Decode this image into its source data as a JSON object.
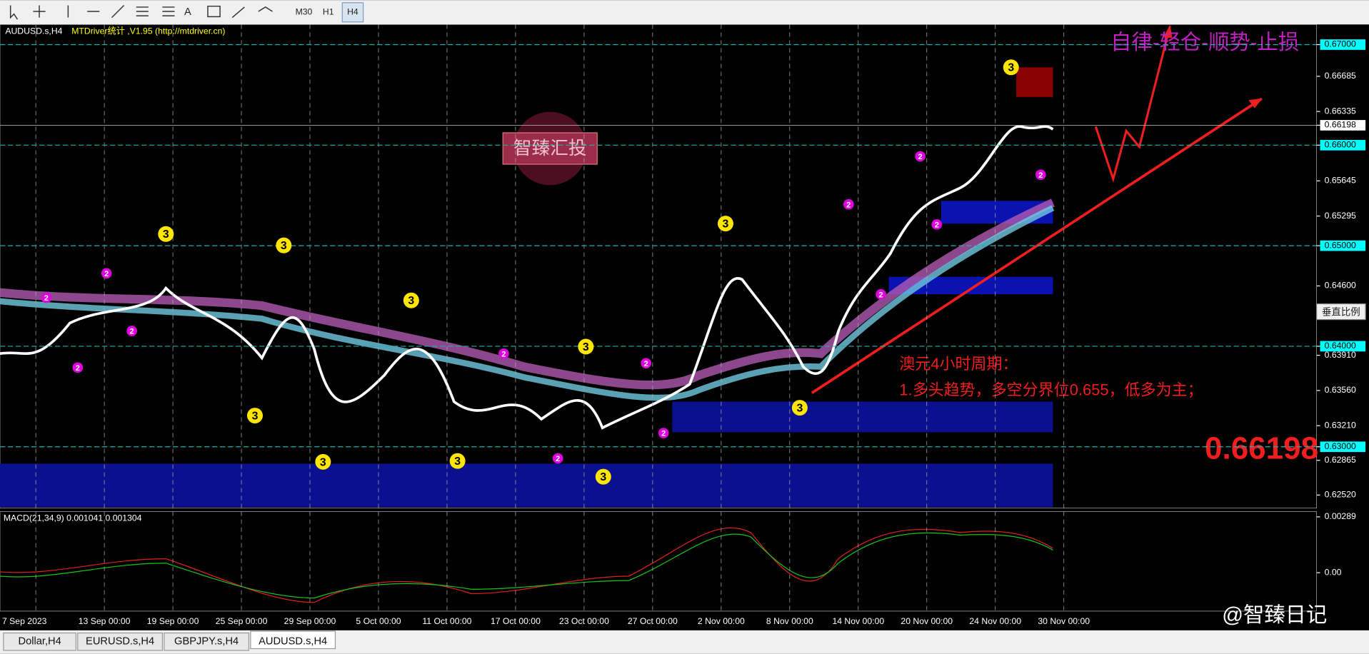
{
  "toolbar": {
    "buttons": [
      "M30",
      "H1",
      "H4"
    ]
  },
  "chart": {
    "symbol": "AUDUSD.s,H4",
    "indicator_info": "MTDriver统计 ,V1.95 (http://mtdriver.cn)",
    "price_axis": [
      {
        "value": 0.67,
        "label": "0.67000"
      },
      {
        "value": 0.66685,
        "label": "0.66685"
      },
      {
        "value": 0.66335,
        "label": "0.66335"
      },
      {
        "value": 0.66198,
        "label": "0.66198"
      },
      {
        "value": 0.66,
        "label": "0.66000"
      },
      {
        "value": 0.65645,
        "label": "0.65645"
      },
      {
        "value": 0.65295,
        "label": "0.65295"
      },
      {
        "value": 0.65,
        "label": "0.65000"
      },
      {
        "value": 0.646,
        "label": "0.64600"
      },
      {
        "value": 0.64,
        "label": "0.64000"
      },
      {
        "value": 0.6391,
        "label": "0.63910"
      },
      {
        "value": 0.6356,
        "label": "0.63560"
      },
      {
        "value": 0.6321,
        "label": "0.63210"
      },
      {
        "value": 0.63,
        "label": "0.63000"
      },
      {
        "value": 0.62865,
        "label": "0.62865"
      },
      {
        "value": 0.6252,
        "label": "0.62520"
      }
    ],
    "level_lines": [
      {
        "value": 0.67,
        "label": "0.67000"
      },
      {
        "value": 0.66,
        "label": "0.66000"
      },
      {
        "value": 0.65,
        "label": "0.65000"
      },
      {
        "value": 0.64,
        "label": "0.64000"
      },
      {
        "value": 0.63,
        "label": "0.63000"
      }
    ],
    "current_price": {
      "value": 0.66198,
      "label": "0.66198"
    },
    "time_axis": [
      "7 Sep 2023",
      "13 Sep 00:00",
      "19 Sep 00:00",
      "25 Sep 00:00",
      "29 Sep 00:00",
      "5 Oct 00:00",
      "11 Oct 00:00",
      "17 Oct 00:00",
      "23 Oct 00:00",
      "27 Oct 00:00",
      "2 Nov 00:00",
      "8 Nov 00:00",
      "14 Nov 00:00",
      "20 Nov 00:00",
      "24 Nov 00:00",
      "30 Nov 00:00"
    ],
    "wave_labels": [
      "3",
      "3",
      "3",
      "3",
      "3",
      "3",
      "3",
      "3",
      "3",
      "3",
      "3",
      "2",
      "2",
      "2",
      "2",
      "2",
      "2",
      "2",
      "2",
      "2",
      "2",
      "2",
      "2",
      "2"
    ],
    "annotations": {
      "slogan": "自律-轻仓-顺势-止损",
      "analysis_title": "澳元4小时周期：",
      "analysis_point": "1.多头趋势，多空分界位0.655，低多为主；",
      "big_price": "0.66198"
    },
    "watermark": "智臻汇投",
    "scale_button": "垂直比例"
  },
  "macd": {
    "info": "MACD(21,34,9) 0.001041 0.001304",
    "axis": [
      {
        "value": 0.00289,
        "label": "0.00289"
      },
      {
        "value": 0,
        "label": "0.00"
      }
    ]
  },
  "footer": {
    "brand": "@智臻日记"
  },
  "tabs": [
    "Dollar,H4",
    "EURUSD.s,H4",
    "GBPJPY.s,H4",
    "AUDUSD.s,H4"
  ],
  "active_tab": 3
}
